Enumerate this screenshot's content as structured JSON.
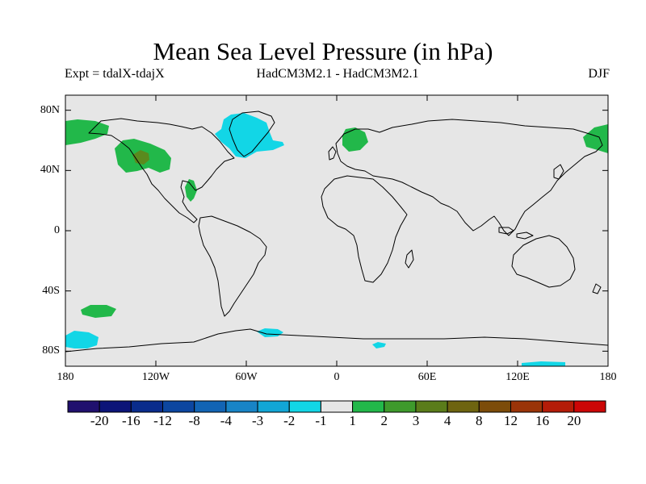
{
  "title": "Mean Sea Level Pressure (in hPa)",
  "subtitle_left": "Expt = tdalX-tdajX",
  "subtitle_center": "HadCM3M2.1 - HadCM3M2.1",
  "subtitle_right": "DJF",
  "map": {
    "projection": "cylindrical-equidistant",
    "lon_range": [
      -180,
      180
    ],
    "lat_range": [
      -90,
      90
    ],
    "background_color": "#e6e6e6",
    "lat_ticks": [
      {
        "lat": 80,
        "label": "80N"
      },
      {
        "lat": 40,
        "label": "40N"
      },
      {
        "lat": 0,
        "label": "0"
      },
      {
        "lat": -40,
        "label": "40S"
      },
      {
        "lat": -80,
        "label": "80S"
      }
    ],
    "lon_ticks": [
      {
        "lon": -180,
        "label": "180"
      },
      {
        "lon": -120,
        "label": "120W"
      },
      {
        "lon": -60,
        "label": "60W"
      },
      {
        "lon": 0,
        "label": "0"
      },
      {
        "lon": 60,
        "label": "60E"
      },
      {
        "lon": 120,
        "label": "120E"
      },
      {
        "lon": 180,
        "label": "180"
      }
    ]
  },
  "anomaly_regions": [
    {
      "name": "alaska-positive",
      "class": "1 to 2",
      "color": "#22b84a"
    },
    {
      "name": "north-america-positive",
      "class": "1 to 2",
      "color": "#22b84a"
    },
    {
      "name": "north-america-core",
      "class": "3 to 4",
      "color": "#5a8a1e"
    },
    {
      "name": "gulf-of-mexico-positive",
      "class": "1 to 2",
      "color": "#22b84a"
    },
    {
      "name": "scandinavia-positive",
      "class": "1 to 2",
      "color": "#22b84a"
    },
    {
      "name": "kamchatka-positive",
      "class": "1 to 2",
      "color": "#22b84a"
    },
    {
      "name": "south-pacific-positive",
      "class": "1 to 2",
      "color": "#22b84a"
    },
    {
      "name": "greenland-negative",
      "class": "-2 to -1",
      "color": "#12d6e6"
    },
    {
      "name": "ross-sea-negative",
      "class": "-2 to -1",
      "color": "#12d6e6"
    },
    {
      "name": "weddell-negative",
      "class": "-2 to -1",
      "color": "#12d6e6"
    },
    {
      "name": "antarctic-small-negative",
      "class": "-2 to -1",
      "color": "#12d6e6"
    },
    {
      "name": "east-antarctic-negative",
      "class": "-2 to -1",
      "color": "#12d6e6"
    }
  ],
  "colorbar": {
    "colors": [
      "#20106e",
      "#0c1478",
      "#0a2c8c",
      "#0c46a0",
      "#1264b4",
      "#1884c6",
      "#12a6d6",
      "#12d6e6",
      "#e6e6e6",
      "#22b84a",
      "#3e9a2c",
      "#5a7c1a",
      "#6e6410",
      "#7c4c0a",
      "#9a3408",
      "#b41c08",
      "#cc0606"
    ],
    "labels": [
      "-20",
      "-16",
      "-12",
      "-8",
      "-4",
      "-3",
      "-2",
      "-1",
      "1",
      "2",
      "3",
      "4",
      "8",
      "12",
      "16",
      "20"
    ]
  }
}
